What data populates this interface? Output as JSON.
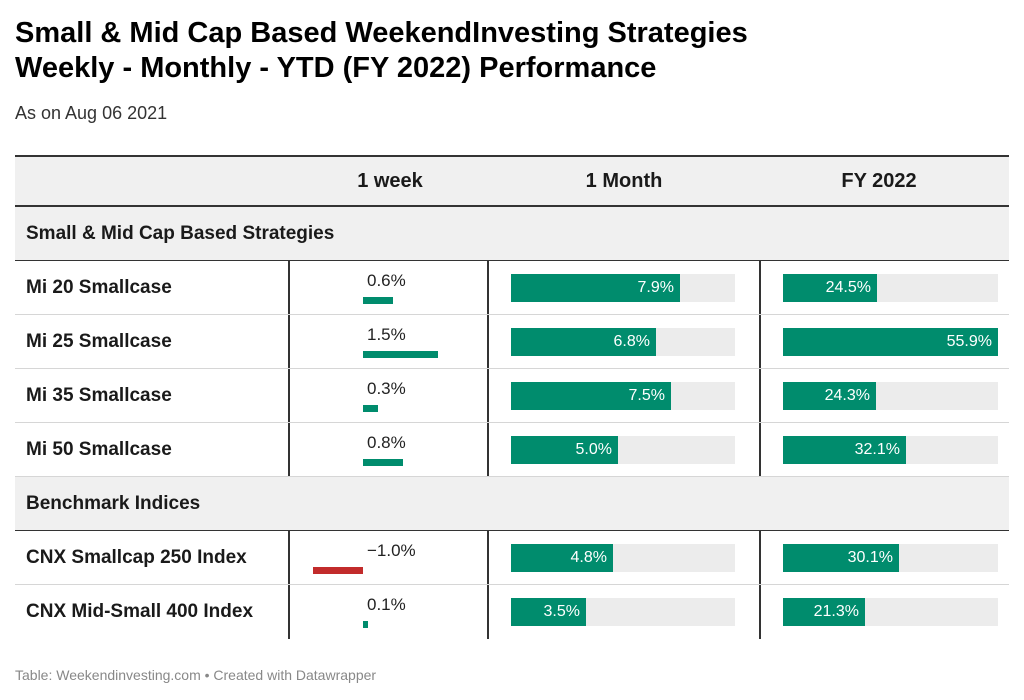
{
  "title_line1": "Small & Mid Cap Based WeekendInvesting Strategies",
  "title_line2": "Weekly - Monthly - YTD (FY 2022) Performance",
  "subtitle": "As on Aug 06 2021",
  "footer": "Table: Weekendinvesting.com • Created with Datawrapper",
  "colors": {
    "positive": "#008c6d",
    "negative": "#c22b2b",
    "track": "#ececec"
  },
  "chart_data": {
    "type": "table",
    "columns": [
      "",
      "1 week",
      "1 Month",
      "FY 2022"
    ],
    "groups": [
      {
        "name": "Small & Mid Cap Based Strategies",
        "rows": [
          {
            "name": "Mi 20 Smallcase",
            "week": 0.6,
            "week_label": "0.6%",
            "month": 7.9,
            "month_label": "7.9%",
            "fy": 24.5,
            "fy_label": "24.5%"
          },
          {
            "name": "Mi 25 Smallcase",
            "week": 1.5,
            "week_label": "1.5%",
            "month": 6.8,
            "month_label": "6.8%",
            "fy": 55.9,
            "fy_label": "55.9%"
          },
          {
            "name": "Mi 35 Smallcase",
            "week": 0.3,
            "week_label": "0.3%",
            "month": 7.5,
            "month_label": "7.5%",
            "fy": 24.3,
            "fy_label": "24.3%"
          },
          {
            "name": "Mi 50 Smallcase",
            "week": 0.8,
            "week_label": "0.8%",
            "month": 5.0,
            "month_label": "5.0%",
            "fy": 32.1,
            "fy_label": "32.1%"
          }
        ]
      },
      {
        "name": "Benchmark Indices",
        "rows": [
          {
            "name": "CNX Smallcap 250 Index",
            "week": -1.0,
            "week_label": "−1.0%",
            "month": 4.8,
            "month_label": "4.8%",
            "fy": 30.1,
            "fy_label": "30.1%"
          },
          {
            "name": "CNX Mid-Small 400 Index",
            "week": 0.1,
            "week_label": "0.1%",
            "month": 3.5,
            "month_label": "3.5%",
            "fy": 21.3,
            "fy_label": "21.3%"
          }
        ]
      }
    ],
    "scale_max": {
      "week": 1.5,
      "month": 10.5,
      "fy": 55.9
    }
  }
}
